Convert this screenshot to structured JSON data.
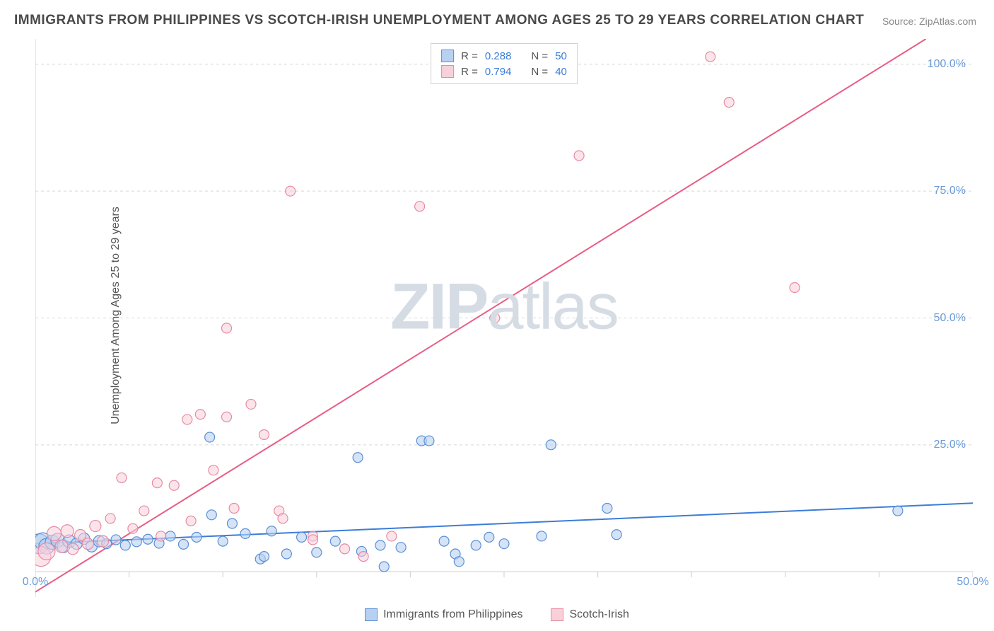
{
  "title": "IMMIGRANTS FROM PHILIPPINES VS SCOTCH-IRISH UNEMPLOYMENT AMONG AGES 25 TO 29 YEARS CORRELATION CHART",
  "source": "Source: ZipAtlas.com",
  "y_axis_label": "Unemployment Among Ages 25 to 29 years",
  "watermark_a": "ZIP",
  "watermark_b": "atlas",
  "chart": {
    "type": "scatter",
    "background": "#ffffff",
    "grid_color": "#d8d8d8",
    "axis_color": "#cccccc",
    "x_range": [
      0,
      50
    ],
    "y_range": [
      -5,
      105
    ],
    "x_ticks": [
      0,
      5,
      10,
      15,
      20,
      25,
      30,
      35,
      40,
      45,
      50
    ],
    "x_tick_labels": {
      "0": "0.0%",
      "50": "50.0%"
    },
    "y_ticks": [
      25,
      50,
      75,
      100
    ],
    "y_tick_labels": {
      "25": "25.0%",
      "50": "50.0%",
      "75": "75.0%",
      "100": "100.0%"
    },
    "tick_label_color": "#6b9bd8",
    "tick_label_fontsize": 16
  },
  "legend_top": [
    {
      "swatch_fill": "#b9d1f0",
      "swatch_stroke": "#5a8fd6",
      "r_label": "R =",
      "r_value": "0.288",
      "n_label": "N =",
      "n_value": "50"
    },
    {
      "swatch_fill": "#f8d0da",
      "swatch_stroke": "#e88aa2",
      "r_label": "R =",
      "r_value": "0.794",
      "n_label": "N =",
      "n_value": "40"
    }
  ],
  "legend_bottom": [
    {
      "swatch_fill": "#b9d1f0",
      "swatch_stroke": "#5a8fd6",
      "label": "Immigrants from Philippines"
    },
    {
      "swatch_fill": "#f8d0da",
      "swatch_stroke": "#e88aa2",
      "label": "Scotch-Irish"
    }
  ],
  "series": [
    {
      "name": "Immigrants from Philippines",
      "fill": "#b9d1f0",
      "stroke": "#5a8fd6",
      "fill_opacity": 0.6,
      "trend": {
        "x1": 0,
        "y1": 5.5,
        "x2": 50,
        "y2": 13.5,
        "color": "#3b7dd8",
        "width": 2
      },
      "points": [
        {
          "x": 0.2,
          "y": 5.5,
          "r": 14
        },
        {
          "x": 0.4,
          "y": 6.0,
          "r": 12
        },
        {
          "x": 0.6,
          "y": 5.0,
          "r": 11
        },
        {
          "x": 0.9,
          "y": 5.8,
          "r": 10
        },
        {
          "x": 1.2,
          "y": 6.2,
          "r": 10
        },
        {
          "x": 1.5,
          "y": 5.0,
          "r": 9
        },
        {
          "x": 1.8,
          "y": 6.0,
          "r": 9
        },
        {
          "x": 2.2,
          "y": 5.5,
          "r": 8
        },
        {
          "x": 2.6,
          "y": 6.5,
          "r": 8
        },
        {
          "x": 3.0,
          "y": 5.0,
          "r": 8
        },
        {
          "x": 3.4,
          "y": 6.0,
          "r": 8
        },
        {
          "x": 3.8,
          "y": 5.5,
          "r": 7
        },
        {
          "x": 4.3,
          "y": 6.3,
          "r": 7
        },
        {
          "x": 4.8,
          "y": 5.2,
          "r": 7
        },
        {
          "x": 5.4,
          "y": 5.9,
          "r": 7
        },
        {
          "x": 6.0,
          "y": 6.4,
          "r": 7
        },
        {
          "x": 6.6,
          "y": 5.6,
          "r": 7
        },
        {
          "x": 7.2,
          "y": 7.0,
          "r": 7
        },
        {
          "x": 7.9,
          "y": 5.4,
          "r": 7
        },
        {
          "x": 8.6,
          "y": 6.8,
          "r": 7
        },
        {
          "x": 9.3,
          "y": 26.5,
          "r": 7
        },
        {
          "x": 9.4,
          "y": 11.2,
          "r": 7
        },
        {
          "x": 10.0,
          "y": 6.0,
          "r": 7
        },
        {
          "x": 10.5,
          "y": 9.5,
          "r": 7
        },
        {
          "x": 11.2,
          "y": 7.5,
          "r": 7
        },
        {
          "x": 12.0,
          "y": 2.5,
          "r": 7
        },
        {
          "x": 12.2,
          "y": 3.0,
          "r": 7
        },
        {
          "x": 12.6,
          "y": 8.0,
          "r": 7
        },
        {
          "x": 13.4,
          "y": 3.5,
          "r": 7
        },
        {
          "x": 14.2,
          "y": 6.8,
          "r": 7
        },
        {
          "x": 15.0,
          "y": 3.8,
          "r": 7
        },
        {
          "x": 16.0,
          "y": 6.0,
          "r": 7
        },
        {
          "x": 17.2,
          "y": 22.5,
          "r": 7
        },
        {
          "x": 17.4,
          "y": 4.0,
          "r": 7
        },
        {
          "x": 18.4,
          "y": 5.2,
          "r": 7
        },
        {
          "x": 18.6,
          "y": 1.0,
          "r": 7
        },
        {
          "x": 19.5,
          "y": 4.8,
          "r": 7
        },
        {
          "x": 20.6,
          "y": 25.8,
          "r": 7
        },
        {
          "x": 21.0,
          "y": 25.8,
          "r": 7
        },
        {
          "x": 21.8,
          "y": 6.0,
          "r": 7
        },
        {
          "x": 22.4,
          "y": 3.5,
          "r": 7
        },
        {
          "x": 22.6,
          "y": 2.0,
          "r": 7
        },
        {
          "x": 23.5,
          "y": 5.2,
          "r": 7
        },
        {
          "x": 24.2,
          "y": 6.8,
          "r": 7
        },
        {
          "x": 25.0,
          "y": 5.5,
          "r": 7
        },
        {
          "x": 27.0,
          "y": 7.0,
          "r": 7
        },
        {
          "x": 27.5,
          "y": 25.0,
          "r": 7
        },
        {
          "x": 30.5,
          "y": 12.5,
          "r": 7
        },
        {
          "x": 31.0,
          "y": 7.3,
          "r": 7
        },
        {
          "x": 46.0,
          "y": 12.0,
          "r": 7
        }
      ]
    },
    {
      "name": "Scotch-Irish",
      "fill": "#f8d0da",
      "stroke": "#e88aa2",
      "fill_opacity": 0.55,
      "trend": {
        "x1": 0,
        "y1": -4,
        "x2": 47.5,
        "y2": 105,
        "color": "#e85d85",
        "width": 2
      },
      "points": [
        {
          "x": 0.3,
          "y": 3.0,
          "r": 14
        },
        {
          "x": 0.6,
          "y": 4.0,
          "r": 12
        },
        {
          "x": 1.0,
          "y": 7.5,
          "r": 10
        },
        {
          "x": 1.4,
          "y": 5.0,
          "r": 9
        },
        {
          "x": 1.7,
          "y": 8.0,
          "r": 9
        },
        {
          "x": 2.0,
          "y": 4.5,
          "r": 8
        },
        {
          "x": 2.4,
          "y": 7.2,
          "r": 8
        },
        {
          "x": 2.8,
          "y": 5.5,
          "r": 8
        },
        {
          "x": 3.2,
          "y": 9.0,
          "r": 8
        },
        {
          "x": 3.6,
          "y": 6.0,
          "r": 8
        },
        {
          "x": 4.0,
          "y": 10.5,
          "r": 7
        },
        {
          "x": 4.6,
          "y": 18.5,
          "r": 7
        },
        {
          "x": 5.2,
          "y": 8.5,
          "r": 7
        },
        {
          "x": 5.8,
          "y": 12.0,
          "r": 7
        },
        {
          "x": 6.5,
          "y": 17.5,
          "r": 7
        },
        {
          "x": 6.7,
          "y": 7.0,
          "r": 7
        },
        {
          "x": 7.4,
          "y": 17.0,
          "r": 7
        },
        {
          "x": 8.1,
          "y": 30.0,
          "r": 7
        },
        {
          "x": 8.3,
          "y": 10.0,
          "r": 7
        },
        {
          "x": 8.8,
          "y": 31.0,
          "r": 7
        },
        {
          "x": 9.5,
          "y": 20.0,
          "r": 7
        },
        {
          "x": 10.2,
          "y": 30.5,
          "r": 7
        },
        {
          "x": 10.2,
          "y": 48.0,
          "r": 7
        },
        {
          "x": 10.6,
          "y": 12.5,
          "r": 7
        },
        {
          "x": 11.5,
          "y": 33.0,
          "r": 7
        },
        {
          "x": 12.2,
          "y": 27.0,
          "r": 7
        },
        {
          "x": 13.0,
          "y": 12.0,
          "r": 7
        },
        {
          "x": 13.2,
          "y": 10.5,
          "r": 7
        },
        {
          "x": 13.6,
          "y": 75.0,
          "r": 7
        },
        {
          "x": 14.8,
          "y": 7.0,
          "r": 7
        },
        {
          "x": 14.8,
          "y": 6.3,
          "r": 7
        },
        {
          "x": 16.5,
          "y": 4.5,
          "r": 7
        },
        {
          "x": 17.5,
          "y": 3.0,
          "r": 7
        },
        {
          "x": 20.5,
          "y": 72.0,
          "r": 7
        },
        {
          "x": 24.5,
          "y": 50.0,
          "r": 7
        },
        {
          "x": 29.0,
          "y": 82.0,
          "r": 7
        },
        {
          "x": 36.0,
          "y": 101.5,
          "r": 7
        },
        {
          "x": 37.0,
          "y": 92.5,
          "r": 7
        },
        {
          "x": 40.5,
          "y": 56.0,
          "r": 7
        },
        {
          "x": 19.0,
          "y": 7.0,
          "r": 7
        }
      ]
    }
  ]
}
